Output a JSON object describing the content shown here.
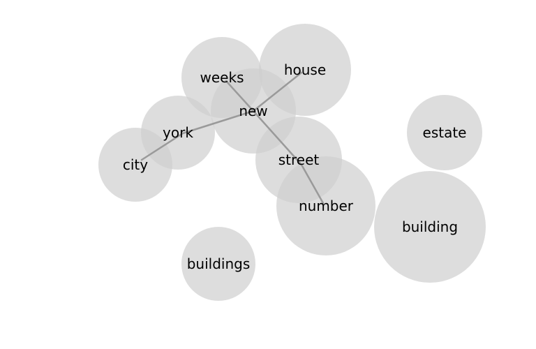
{
  "diagram": {
    "type": "word-cooccurrence-bubble-graph",
    "colors": {
      "node_fill": "#cfcfcf",
      "edge": "#9a9a9a",
      "label": "#000000",
      "background": "#ffffff"
    },
    "nodes": [
      {
        "id": "weeks",
        "label": "weeks"
      },
      {
        "id": "house",
        "label": "house"
      },
      {
        "id": "new",
        "label": "new"
      },
      {
        "id": "york",
        "label": "york"
      },
      {
        "id": "city",
        "label": "city"
      },
      {
        "id": "street",
        "label": "street"
      },
      {
        "id": "number",
        "label": "number"
      },
      {
        "id": "estate",
        "label": "estate"
      },
      {
        "id": "building",
        "label": "building"
      },
      {
        "id": "buildings",
        "label": "buildings"
      }
    ],
    "edges": [
      {
        "from": "weeks",
        "to": "new"
      },
      {
        "from": "house",
        "to": "new"
      },
      {
        "from": "new",
        "to": "york"
      },
      {
        "from": "york",
        "to": "city"
      },
      {
        "from": "new",
        "to": "street"
      },
      {
        "from": "street",
        "to": "number"
      }
    ]
  }
}
